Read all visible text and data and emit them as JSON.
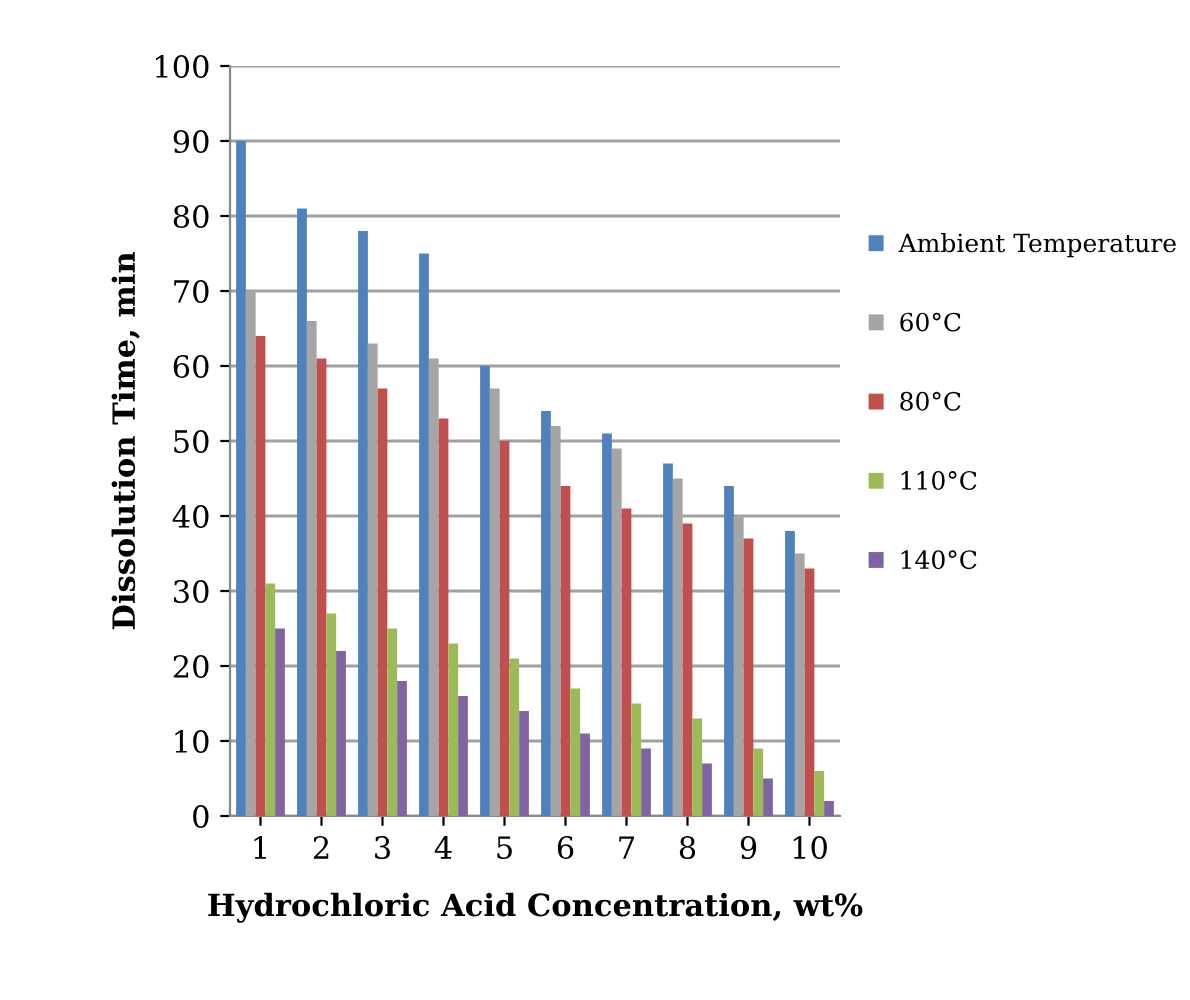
{
  "chart_data": {
    "type": "bar",
    "xlabel": "Hydrochloric Acid Concentration, wt%",
    "ylabel": "Dissolution Time, min",
    "categories": [
      "1",
      "2",
      "3",
      "4",
      "5",
      "6",
      "7",
      "8",
      "9",
      "10"
    ],
    "series": [
      {
        "name": "Ambient Temperature",
        "color": "#4f81bd",
        "values": [
          90,
          81,
          78,
          75,
          60,
          54,
          51,
          47,
          44,
          38
        ]
      },
      {
        "name": "60°C",
        "color": "#a5a5a5",
        "values": [
          70,
          66,
          63,
          61,
          57,
          52,
          49,
          45,
          40,
          35
        ]
      },
      {
        "name": "80°C",
        "color": "#c0504d",
        "values": [
          64,
          61,
          57,
          53,
          50,
          44,
          41,
          39,
          37,
          33
        ]
      },
      {
        "name": "110°C",
        "color": "#9bbb59",
        "values": [
          31,
          27,
          25,
          23,
          21,
          17,
          15,
          13,
          9,
          6
        ]
      },
      {
        "name": "140°C",
        "color": "#8064a2",
        "values": [
          25,
          22,
          18,
          16,
          14,
          11,
          9,
          7,
          5,
          2
        ]
      }
    ],
    "ylim": [
      0,
      100
    ],
    "yticks": [
      0,
      10,
      20,
      30,
      40,
      50,
      60,
      70,
      80,
      90,
      100
    ],
    "grid": "y",
    "legend": "right"
  }
}
